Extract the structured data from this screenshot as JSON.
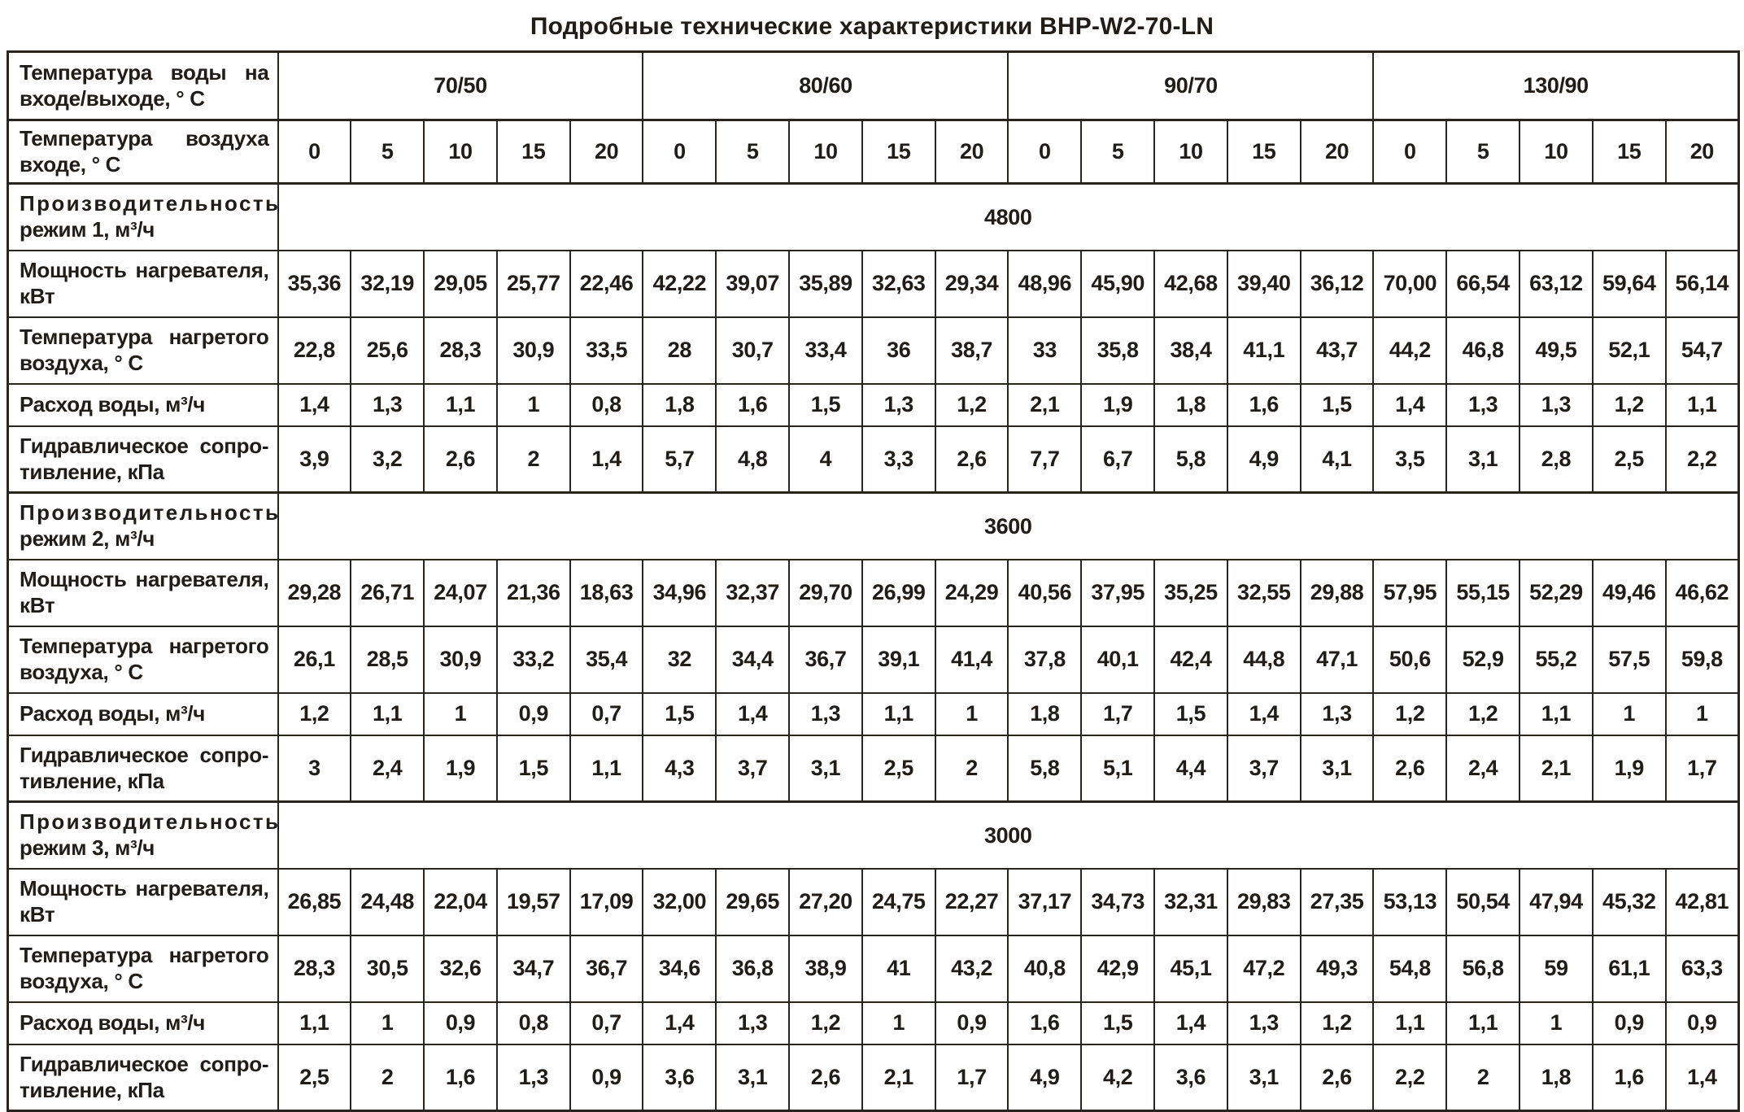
{
  "title": "Подробные технические характеристики BHP-W2-70-LN",
  "colors": {
    "border": "#2a241f",
    "text": "#211c16",
    "background": "#ffffff"
  },
  "table": {
    "header": {
      "water_temp_label": "Температура воды на входе/выходе, ° С",
      "water_temp_groups": [
        "70/50",
        "80/60",
        "90/70",
        "130/90"
      ],
      "air_temp_label": "Температура воздуха входе, ° С",
      "air_temps": [
        "0",
        "5",
        "10",
        "15",
        "20"
      ]
    },
    "row_labels": {
      "power": "Мощность нагревателя, кВт",
      "heated_air": "Температура нагретого воздуха, ° С",
      "water_flow": "Расход воды, м³/ч",
      "hydraulic": "Гидравлическое сопро­тивление, кПа"
    },
    "modes": [
      {
        "capacity_label": "Производительность режим 1, м³/ч",
        "capacity_value": "4800",
        "power": [
          "35,36",
          "32,19",
          "29,05",
          "25,77",
          "22,46",
          "42,22",
          "39,07",
          "35,89",
          "32,63",
          "29,34",
          "48,96",
          "45,90",
          "42,68",
          "39,40",
          "36,12",
          "70,00",
          "66,54",
          "63,12",
          "59,64",
          "56,14"
        ],
        "heated_air": [
          "22,8",
          "25,6",
          "28,3",
          "30,9",
          "33,5",
          "28",
          "30,7",
          "33,4",
          "36",
          "38,7",
          "33",
          "35,8",
          "38,4",
          "41,1",
          "43,7",
          "44,2",
          "46,8",
          "49,5",
          "52,1",
          "54,7"
        ],
        "water_flow": [
          "1,4",
          "1,3",
          "1,1",
          "1",
          "0,8",
          "1,8",
          "1,6",
          "1,5",
          "1,3",
          "1,2",
          "2,1",
          "1,9",
          "1,8",
          "1,6",
          "1,5",
          "1,4",
          "1,3",
          "1,3",
          "1,2",
          "1,1"
        ],
        "hydraulic": [
          "3,9",
          "3,2",
          "2,6",
          "2",
          "1,4",
          "5,7",
          "4,8",
          "4",
          "3,3",
          "2,6",
          "7,7",
          "6,7",
          "5,8",
          "4,9",
          "4,1",
          "3,5",
          "3,1",
          "2,8",
          "2,5",
          "2,2"
        ]
      },
      {
        "capacity_label": "Производительность режим 2, м³/ч",
        "capacity_value": "3600",
        "power": [
          "29,28",
          "26,71",
          "24,07",
          "21,36",
          "18,63",
          "34,96",
          "32,37",
          "29,70",
          "26,99",
          "24,29",
          "40,56",
          "37,95",
          "35,25",
          "32,55",
          "29,88",
          "57,95",
          "55,15",
          "52,29",
          "49,46",
          "46,62"
        ],
        "heated_air": [
          "26,1",
          "28,5",
          "30,9",
          "33,2",
          "35,4",
          "32",
          "34,4",
          "36,7",
          "39,1",
          "41,4",
          "37,8",
          "40,1",
          "42,4",
          "44,8",
          "47,1",
          "50,6",
          "52,9",
          "55,2",
          "57,5",
          "59,8"
        ],
        "water_flow": [
          "1,2",
          "1,1",
          "1",
          "0,9",
          "0,7",
          "1,5",
          "1,4",
          "1,3",
          "1,1",
          "1",
          "1,8",
          "1,7",
          "1,5",
          "1,4",
          "1,3",
          "1,2",
          "1,2",
          "1,1",
          "1",
          "1"
        ],
        "hydraulic": [
          "3",
          "2,4",
          "1,9",
          "1,5",
          "1,1",
          "4,3",
          "3,7",
          "3,1",
          "2,5",
          "2",
          "5,8",
          "5,1",
          "4,4",
          "3,7",
          "3,1",
          "2,6",
          "2,4",
          "2,1",
          "1,9",
          "1,7"
        ]
      },
      {
        "capacity_label": "Производительность режим 3, м³/ч",
        "capacity_value": "3000",
        "power": [
          "26,85",
          "24,48",
          "22,04",
          "19,57",
          "17,09",
          "32,00",
          "29,65",
          "27,20",
          "24,75",
          "22,27",
          "37,17",
          "34,73",
          "32,31",
          "29,83",
          "27,35",
          "53,13",
          "50,54",
          "47,94",
          "45,32",
          "42,81"
        ],
        "heated_air": [
          "28,3",
          "30,5",
          "32,6",
          "34,7",
          "36,7",
          "34,6",
          "36,8",
          "38,9",
          "41",
          "43,2",
          "40,8",
          "42,9",
          "45,1",
          "47,2",
          "49,3",
          "54,8",
          "56,8",
          "59",
          "61,1",
          "63,3"
        ],
        "water_flow": [
          "1,1",
          "1",
          "0,9",
          "0,8",
          "0,7",
          "1,4",
          "1,3",
          "1,2",
          "1",
          "0,9",
          "1,6",
          "1,5",
          "1,4",
          "1,3",
          "1,2",
          "1,1",
          "1,1",
          "1",
          "0,9",
          "0,9"
        ],
        "hydraulic": [
          "2,5",
          "2",
          "1,6",
          "1,3",
          "0,9",
          "3,6",
          "3,1",
          "2,6",
          "2,1",
          "1,7",
          "4,9",
          "4,2",
          "3,6",
          "3,1",
          "2,6",
          "2,2",
          "2",
          "1,8",
          "1,6",
          "1,4"
        ]
      }
    ]
  }
}
